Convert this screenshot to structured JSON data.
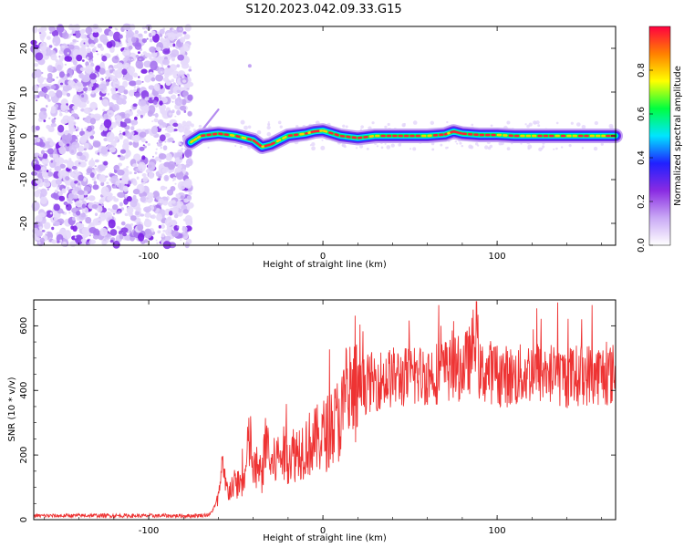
{
  "title": "S120.2023.042.09.33.G15",
  "chart_data": [
    {
      "type": "heatmap",
      "xlabel": "Height of straight line (km)",
      "ylabel": "Frequency (Hz)",
      "xlim": [
        -166,
        168
      ],
      "ylim": [
        -25,
        25
      ],
      "x_ticks": [
        -100,
        0,
        100
      ],
      "y_ticks": [
        -20,
        -10,
        0,
        10,
        20
      ],
      "colorbar": {
        "label": "Normalized spectral amplitude",
        "range": [
          0,
          1
        ],
        "ticks": [
          "0.0",
          "0.2",
          "0.4",
          "0.6",
          "0.8"
        ],
        "colormap": [
          "#ffffff",
          "#c9a9f5",
          "#8a2be2",
          "#2020ff",
          "#00e5ff",
          "#00ff40",
          "#ffff00",
          "#ff8000",
          "#ff0040"
        ]
      },
      "noise_region_end_km": -76,
      "signal_trace": {
        "x": [
          -76,
          -70,
          -60,
          -50,
          -40,
          -35,
          -30,
          -20,
          -10,
          -5,
          0,
          10,
          20,
          30,
          40,
          50,
          60,
          70,
          75,
          80,
          90,
          100,
          110,
          120,
          130,
          140,
          150,
          160,
          168
        ],
        "y": [
          -1.5,
          0,
          0.5,
          0,
          -1,
          -2.5,
          -2,
          0,
          0.5,
          1,
          1.2,
          0,
          -0.5,
          0,
          0,
          0,
          0,
          0.3,
          1,
          0.5,
          0.2,
          0.2,
          0,
          0,
          0,
          0,
          0,
          0,
          0
        ]
      }
    },
    {
      "type": "line",
      "xlabel": "Height of straight line (km)",
      "ylabel": "SNR (10 * v/v)",
      "xlim": [
        -166,
        168
      ],
      "ylim": [
        0,
        680
      ],
      "x_ticks": [
        -100,
        0,
        100
      ],
      "y_ticks": [
        0,
        200,
        400,
        600
      ],
      "color": "#ee3333",
      "series": [
        {
          "x": [
            -166,
            -150,
            -130,
            -110,
            -90,
            -75,
            -65,
            -60,
            -58,
            -55,
            -50,
            -45,
            -42,
            -40,
            -35,
            -32,
            -30,
            -25,
            -20,
            -15,
            -10,
            -5,
            0,
            5,
            10,
            15,
            20,
            25,
            30,
            40,
            50,
            60,
            70,
            80,
            85,
            88,
            90,
            95,
            100,
            110,
            120,
            130,
            140,
            150,
            160,
            168
          ],
          "y": [
            12,
            12,
            13,
            12,
            12,
            12,
            15,
            60,
            150,
            90,
            110,
            120,
            260,
            150,
            140,
            260,
            160,
            200,
            200,
            210,
            230,
            240,
            260,
            280,
            320,
            360,
            400,
            420,
            430,
            440,
            440,
            450,
            460,
            470,
            500,
            600,
            450,
            460,
            450,
            440,
            460,
            450,
            440,
            450,
            450,
            450
          ]
        }
      ]
    }
  ]
}
